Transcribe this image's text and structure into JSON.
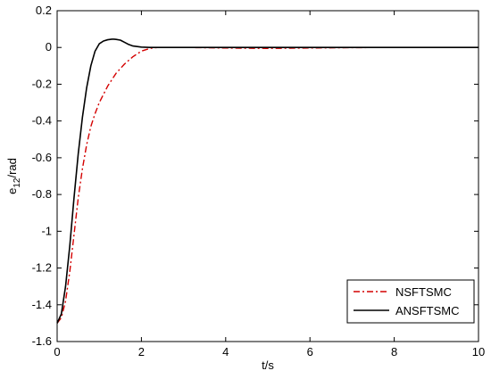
{
  "chart_data": {
    "type": "line",
    "xlabel": "t/s",
    "ylabel_main": "e",
    "ylabel_sub": "12",
    "ylabel_rest": "/rad",
    "xlim": [
      0,
      10
    ],
    "ylim": [
      -1.6,
      0.2
    ],
    "xticks": [
      0,
      2,
      4,
      6,
      8,
      10
    ],
    "yticks": [
      -1.6,
      -1.4,
      -1.2,
      -1,
      -0.8,
      -0.6,
      -0.4,
      -0.2,
      0,
      0.2
    ],
    "grid": false,
    "legend_position": "bottom-right",
    "series": [
      {
        "name": "NSFTSMC",
        "style": "dash-dot",
        "color": "#d40000",
        "x": [
          0,
          0.1,
          0.2,
          0.3,
          0.4,
          0.5,
          0.6,
          0.7,
          0.8,
          0.9,
          1.0,
          1.2,
          1.4,
          1.6,
          1.8,
          2.0,
          2.2,
          2.4,
          3.0,
          4.0,
          5.0,
          6.0,
          7.0,
          8.0,
          9.0,
          10.0
        ],
        "y": [
          -1.5,
          -1.47,
          -1.38,
          -1.22,
          -1.02,
          -0.82,
          -0.66,
          -0.53,
          -0.43,
          -0.36,
          -0.3,
          -0.21,
          -0.14,
          -0.09,
          -0.05,
          -0.02,
          -0.005,
          0.0,
          0.0,
          -0.003,
          -0.005,
          -0.003,
          -0.001,
          0.0,
          0.0,
          0.0
        ]
      },
      {
        "name": "ANSFTSMC",
        "style": "solid",
        "color": "#000000",
        "x": [
          0,
          0.1,
          0.2,
          0.3,
          0.4,
          0.5,
          0.6,
          0.7,
          0.8,
          0.9,
          1.0,
          1.1,
          1.2,
          1.3,
          1.35,
          1.4,
          1.5,
          1.6,
          1.7,
          1.8,
          2.0,
          2.2,
          2.4,
          3.0,
          4.0,
          6.0,
          8.0,
          10.0
        ],
        "y": [
          -1.5,
          -1.45,
          -1.3,
          -1.08,
          -0.82,
          -0.58,
          -0.38,
          -0.22,
          -0.1,
          -0.02,
          0.02,
          0.035,
          0.042,
          0.045,
          0.045,
          0.044,
          0.04,
          0.028,
          0.016,
          0.008,
          0.002,
          0.0,
          0.0,
          0.0,
          0.0,
          0.0,
          0.0,
          0.0
        ]
      }
    ]
  }
}
